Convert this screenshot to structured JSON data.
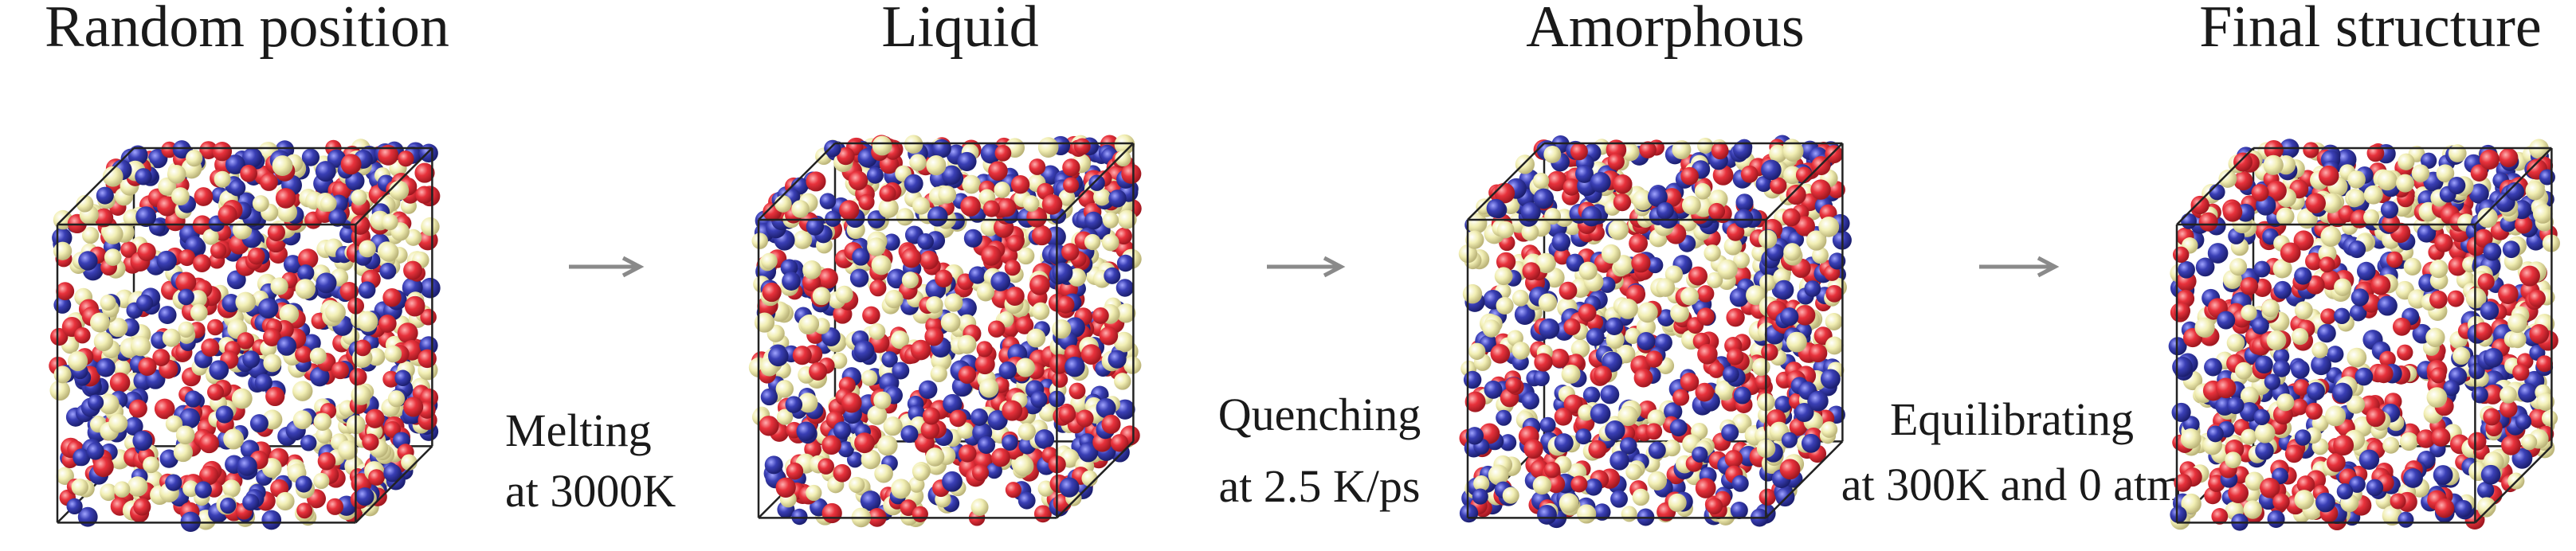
{
  "stages": [
    {
      "title": "Random position"
    },
    {
      "title": "Liquid"
    },
    {
      "title": "Amorphous"
    },
    {
      "title": "Final structure"
    }
  ],
  "transitions": [
    {
      "line1": "Melting",
      "line2": "at 3000K"
    },
    {
      "line1": "Quenching",
      "line2": "at 2.5 K/ps"
    },
    {
      "line1": "Equilibrating",
      "line2": "at 300K and 0 atm"
    }
  ]
}
